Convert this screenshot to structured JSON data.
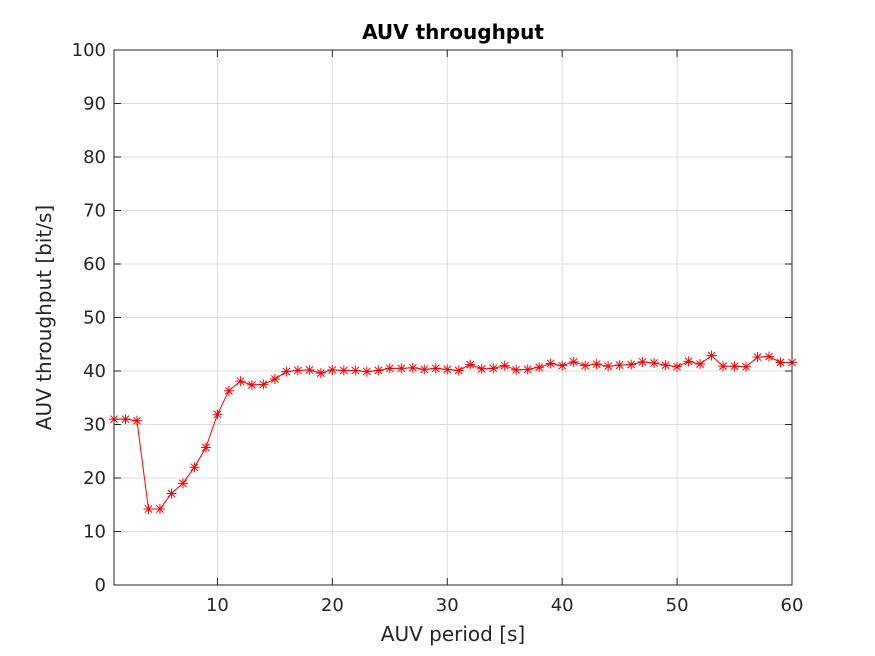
{
  "chart_data": {
    "type": "line",
    "title": "AUV throughput",
    "xlabel": "AUV period [s]",
    "ylabel": "AUV throughput [bit/s]",
    "xlim": [
      1,
      60
    ],
    "ylim": [
      0,
      100
    ],
    "xticks": [
      10,
      20,
      30,
      40,
      50,
      60
    ],
    "yticks": [
      0,
      10,
      20,
      30,
      40,
      50,
      60,
      70,
      80,
      90,
      100
    ],
    "grid": true,
    "marker": "asterisk",
    "color": "#ff0000",
    "series": [
      {
        "x": [
          1,
          2,
          3,
          4,
          5,
          6,
          7,
          8,
          9,
          10,
          11,
          12,
          13,
          14,
          15,
          16,
          17,
          18,
          19,
          20,
          21,
          22,
          23,
          24,
          25,
          26,
          27,
          28,
          29,
          30,
          31,
          32,
          33,
          34,
          35,
          36,
          37,
          38,
          39,
          40,
          41,
          42,
          43,
          44,
          45,
          46,
          47,
          48,
          49,
          50,
          51,
          52,
          53,
          54,
          55,
          56,
          57,
          58,
          59,
          60
        ],
        "values": [
          31,
          31,
          30.7,
          14.2,
          14.2,
          17.1,
          19,
          22,
          25.7,
          31.9,
          36.3,
          38.1,
          37.4,
          37.5,
          38.5,
          39.9,
          40.1,
          40.2,
          39.6,
          40.2,
          40.1,
          40.1,
          39.9,
          40.1,
          40.5,
          40.5,
          40.6,
          40.3,
          40.5,
          40.3,
          40.1,
          41.2,
          40.4,
          40.5,
          41,
          40.2,
          40.3,
          40.7,
          41.4,
          41,
          41.7,
          41,
          41.3,
          40.9,
          41.1,
          41.2,
          41.7,
          41.5,
          41.1,
          40.8,
          41.8,
          41.3,
          42.9,
          40.9,
          40.9,
          40.8,
          42.6,
          42.7,
          41.6,
          41.6
        ]
      }
    ]
  }
}
